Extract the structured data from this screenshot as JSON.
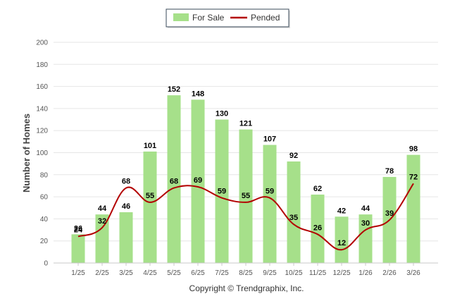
{
  "chart_data": {
    "type": "bar",
    "title": "",
    "xlabel": "",
    "ylabel": "Number of Homes",
    "ylim": [
      0,
      200
    ],
    "yticks": [
      0,
      20,
      40,
      60,
      80,
      100,
      120,
      140,
      160,
      180,
      200
    ],
    "grid": true,
    "legend_position": "top-center",
    "categories": [
      "1/25",
      "2/25",
      "3/25",
      "4/25",
      "5/25",
      "6/25",
      "7/25",
      "8/25",
      "9/25",
      "10/25",
      "11/25",
      "12/25",
      "1/26",
      "2/26",
      "3/26"
    ],
    "series": [
      {
        "name": "For Sale",
        "type": "bar",
        "color": "#a6e08a",
        "values": [
          26,
          44,
          46,
          101,
          152,
          148,
          130,
          121,
          107,
          92,
          62,
          42,
          44,
          78,
          98
        ]
      },
      {
        "name": "Pended",
        "type": "line",
        "color": "#b30000",
        "values": [
          24,
          32,
          68,
          55,
          68,
          69,
          59,
          55,
          59,
          35,
          26,
          12,
          30,
          39,
          72
        ]
      }
    ]
  },
  "footer": {
    "copyright": "Copyright © Trendgraphix, Inc."
  }
}
